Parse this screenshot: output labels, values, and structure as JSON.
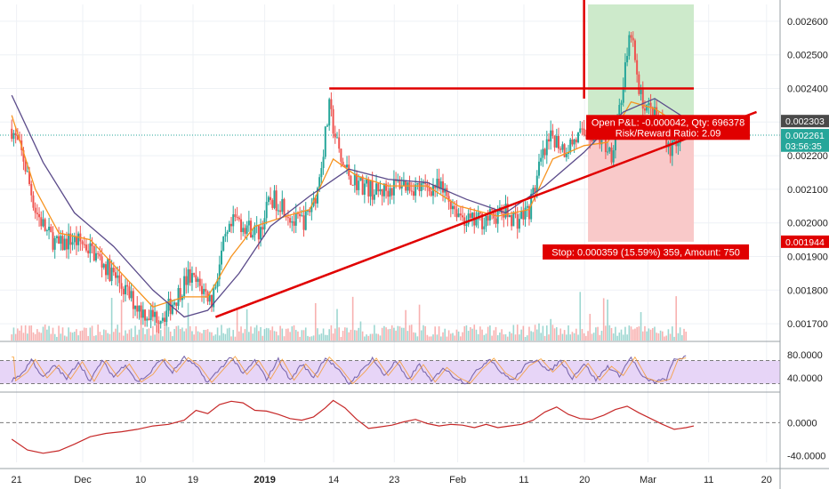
{
  "chart_data": {
    "type": "candlestick",
    "x_ticks": [
      "21",
      "Dec",
      "10",
      "19",
      "2019",
      "14",
      "23",
      "Feb",
      "11",
      "20",
      "Mar",
      "11",
      "20"
    ],
    "bold_x_ticks": [
      "2019"
    ],
    "price_axis": {
      "ticks": [
        "0.001700",
        "0.001800",
        "0.001900",
        "0.002000",
        "0.002100",
        "0.002200",
        "0.002300",
        "0.002400",
        "0.002500",
        "0.002600"
      ],
      "ylim": [
        0.00165,
        0.00265
      ]
    },
    "price_badges": [
      {
        "label": "0.002303",
        "value": 0.002303,
        "color": "#4a4a4a"
      },
      {
        "label": "0.002261",
        "value": 0.002261,
        "color": "#26a69a"
      },
      {
        "label": "03:56:35",
        "value": 0.00223,
        "color": "#26a69a"
      },
      {
        "label": "0.001944",
        "value": 0.001944,
        "color": "#e00000"
      }
    ],
    "price_series": [
      {
        "x": 0,
        "y": 0.00228
      },
      {
        "x": 3,
        "y": 0.00219
      },
      {
        "x": 6,
        "y": 0.00204
      },
      {
        "x": 9,
        "y": 0.00197
      },
      {
        "x": 12,
        "y": 0.00193
      },
      {
        "x": 15,
        "y": 0.00195
      },
      {
        "x": 18,
        "y": 0.00194
      },
      {
        "x": 21,
        "y": 0.00191
      },
      {
        "x": 24,
        "y": 0.00187
      },
      {
        "x": 27,
        "y": 0.00183
      },
      {
        "x": 30,
        "y": 0.00178
      },
      {
        "x": 33,
        "y": 0.00174
      },
      {
        "x": 36,
        "y": 0.00172
      },
      {
        "x": 39,
        "y": 0.00173
      },
      {
        "x": 42,
        "y": 0.00178
      },
      {
        "x": 45,
        "y": 0.00184
      },
      {
        "x": 48,
        "y": 0.00181
      },
      {
        "x": 51,
        "y": 0.00177
      },
      {
        "x": 54,
        "y": 0.00193
      },
      {
        "x": 57,
        "y": 0.00201
      },
      {
        "x": 60,
        "y": 0.00199
      },
      {
        "x": 63,
        "y": 0.00197
      },
      {
        "x": 66,
        "y": 0.00207
      },
      {
        "x": 69,
        "y": 0.00206
      },
      {
        "x": 72,
        "y": 0.002
      },
      {
        "x": 75,
        "y": 0.00201
      },
      {
        "x": 78,
        "y": 0.0021
      },
      {
        "x": 81,
        "y": 0.00234
      },
      {
        "x": 84,
        "y": 0.00218
      },
      {
        "x": 87,
        "y": 0.00213
      },
      {
        "x": 90,
        "y": 0.00211
      },
      {
        "x": 93,
        "y": 0.00209
      },
      {
        "x": 96,
        "y": 0.0021
      },
      {
        "x": 99,
        "y": 0.00212
      },
      {
        "x": 102,
        "y": 0.00211
      },
      {
        "x": 105,
        "y": 0.0021
      },
      {
        "x": 108,
        "y": 0.00211
      },
      {
        "x": 111,
        "y": 0.00208
      },
      {
        "x": 114,
        "y": 0.00203
      },
      {
        "x": 117,
        "y": 0.002
      },
      {
        "x": 120,
        "y": 0.00201
      },
      {
        "x": 123,
        "y": 0.00202
      },
      {
        "x": 126,
        "y": 0.00203
      },
      {
        "x": 129,
        "y": 0.00201
      },
      {
        "x": 132,
        "y": 0.00204
      },
      {
        "x": 135,
        "y": 0.00218
      },
      {
        "x": 138,
        "y": 0.00226
      },
      {
        "x": 141,
        "y": 0.00222
      },
      {
        "x": 144,
        "y": 0.00225
      },
      {
        "x": 147,
        "y": 0.00227
      },
      {
        "x": 150,
        "y": 0.00225
      },
      {
        "x": 153,
        "y": 0.00221
      },
      {
        "x": 156,
        "y": 0.00241
      },
      {
        "x": 158,
        "y": 0.00257
      },
      {
        "x": 160,
        "y": 0.00238
      },
      {
        "x": 163,
        "y": 0.00233
      },
      {
        "x": 166,
        "y": 0.00229
      },
      {
        "x": 168,
        "y": 0.00222
      },
      {
        "x": 170,
        "y": 0.00226
      },
      {
        "x": 172,
        "y": 0.00226
      }
    ],
    "moving_averages": [
      {
        "color": "#f7931e",
        "points": [
          {
            "x": 0,
            "y": 0.00232
          },
          {
            "x": 6,
            "y": 0.0021
          },
          {
            "x": 12,
            "y": 0.00197
          },
          {
            "x": 20,
            "y": 0.00195
          },
          {
            "x": 28,
            "y": 0.00185
          },
          {
            "x": 36,
            "y": 0.00175
          },
          {
            "x": 44,
            "y": 0.00178
          },
          {
            "x": 50,
            "y": 0.00178
          },
          {
            "x": 56,
            "y": 0.0019
          },
          {
            "x": 62,
            "y": 0.00199
          },
          {
            "x": 70,
            "y": 0.00202
          },
          {
            "x": 76,
            "y": 0.00204
          },
          {
            "x": 82,
            "y": 0.00219
          },
          {
            "x": 88,
            "y": 0.00214
          },
          {
            "x": 96,
            "y": 0.00211
          },
          {
            "x": 106,
            "y": 0.00211
          },
          {
            "x": 114,
            "y": 0.00205
          },
          {
            "x": 124,
            "y": 0.00202
          },
          {
            "x": 132,
            "y": 0.00204
          },
          {
            "x": 138,
            "y": 0.00219
          },
          {
            "x": 146,
            "y": 0.00223
          },
          {
            "x": 152,
            "y": 0.00224
          },
          {
            "x": 158,
            "y": 0.00236
          },
          {
            "x": 164,
            "y": 0.00234
          },
          {
            "x": 172,
            "y": 0.00228
          }
        ]
      },
      {
        "color": "#5b4b8a",
        "points": [
          {
            "x": 0,
            "y": 0.00238
          },
          {
            "x": 8,
            "y": 0.00218
          },
          {
            "x": 16,
            "y": 0.00203
          },
          {
            "x": 26,
            "y": 0.00193
          },
          {
            "x": 36,
            "y": 0.0018
          },
          {
            "x": 44,
            "y": 0.00172
          },
          {
            "x": 50,
            "y": 0.00174
          },
          {
            "x": 58,
            "y": 0.00185
          },
          {
            "x": 66,
            "y": 0.00199
          },
          {
            "x": 76,
            "y": 0.00208
          },
          {
            "x": 86,
            "y": 0.00216
          },
          {
            "x": 96,
            "y": 0.00213
          },
          {
            "x": 106,
            "y": 0.00212
          },
          {
            "x": 116,
            "y": 0.00207
          },
          {
            "x": 126,
            "y": 0.00203
          },
          {
            "x": 136,
            "y": 0.00211
          },
          {
            "x": 146,
            "y": 0.00221
          },
          {
            "x": 156,
            "y": 0.00233
          },
          {
            "x": 164,
            "y": 0.00237
          },
          {
            "x": 172,
            "y": 0.00231
          }
        ]
      }
    ],
    "drawings": {
      "resistance_y": 0.0024,
      "resistance_from_x": 81,
      "resistance_to_x": 174,
      "trendline": {
        "from": {
          "x": 52,
          "y": 0.00172
        },
        "to": {
          "x": 190,
          "y": 0.00233
        }
      },
      "marker": {
        "x": 146,
        "from_y": 0.00237,
        "to_y": 0.0027
      }
    },
    "position": {
      "start_x": 147,
      "end_x": 174,
      "entry": 0.0023,
      "target": 0.00265,
      "stop": 0.001944,
      "open_text_1": "Open P&L: -0.000042, Qty: 696378",
      "open_text_2": "Risk/Reward Ratio: 2.09",
      "stop_text": "Stop: 0.000359 (15.59%) 359, Amount: 750"
    },
    "rsi_panel": {
      "ticks": [
        "40.0000",
        "80.0000"
      ],
      "ylim": [
        17,
        100
      ],
      "band": [
        30,
        70
      ],
      "series": [
        {
          "x": 0,
          "y": 35
        },
        {
          "x": 3,
          "y": 50
        },
        {
          "x": 5,
          "y": 72
        },
        {
          "x": 8,
          "y": 40
        },
        {
          "x": 11,
          "y": 62
        },
        {
          "x": 14,
          "y": 38
        },
        {
          "x": 17,
          "y": 68
        },
        {
          "x": 20,
          "y": 34
        },
        {
          "x": 23,
          "y": 70
        },
        {
          "x": 26,
          "y": 42
        },
        {
          "x": 29,
          "y": 64
        },
        {
          "x": 32,
          "y": 33
        },
        {
          "x": 35,
          "y": 46
        },
        {
          "x": 38,
          "y": 73
        },
        {
          "x": 41,
          "y": 50
        },
        {
          "x": 44,
          "y": 75
        },
        {
          "x": 47,
          "y": 60
        },
        {
          "x": 50,
          "y": 32
        },
        {
          "x": 53,
          "y": 55
        },
        {
          "x": 56,
          "y": 77
        },
        {
          "x": 59,
          "y": 46
        },
        {
          "x": 62,
          "y": 70
        },
        {
          "x": 65,
          "y": 38
        },
        {
          "x": 68,
          "y": 72
        },
        {
          "x": 71,
          "y": 36
        },
        {
          "x": 74,
          "y": 64
        },
        {
          "x": 77,
          "y": 41
        },
        {
          "x": 80,
          "y": 76
        },
        {
          "x": 83,
          "y": 56
        },
        {
          "x": 86,
          "y": 30
        },
        {
          "x": 89,
          "y": 50
        },
        {
          "x": 92,
          "y": 74
        },
        {
          "x": 95,
          "y": 44
        },
        {
          "x": 98,
          "y": 69
        },
        {
          "x": 101,
          "y": 36
        },
        {
          "x": 104,
          "y": 63
        },
        {
          "x": 107,
          "y": 33
        },
        {
          "x": 110,
          "y": 58
        },
        {
          "x": 113,
          "y": 41
        },
        {
          "x": 116,
          "y": 31
        },
        {
          "x": 119,
          "y": 55
        },
        {
          "x": 122,
          "y": 74
        },
        {
          "x": 125,
          "y": 48
        },
        {
          "x": 128,
          "y": 36
        },
        {
          "x": 131,
          "y": 61
        },
        {
          "x": 134,
          "y": 73
        },
        {
          "x": 137,
          "y": 50
        },
        {
          "x": 140,
          "y": 70
        },
        {
          "x": 143,
          "y": 40
        },
        {
          "x": 146,
          "y": 65
        },
        {
          "x": 149,
          "y": 36
        },
        {
          "x": 152,
          "y": 60
        },
        {
          "x": 155,
          "y": 44
        },
        {
          "x": 158,
          "y": 76
        },
        {
          "x": 161,
          "y": 40
        },
        {
          "x": 164,
          "y": 33
        },
        {
          "x": 167,
          "y": 38
        },
        {
          "x": 169,
          "y": 72
        },
        {
          "x": 172,
          "y": 76
        }
      ]
    },
    "osc_panel": {
      "ticks": [
        "-40.0000",
        "0.0000"
      ],
      "ylim": [
        -48,
        36
      ],
      "zero_line": 0,
      "series": [
        {
          "x": 0,
          "y": -20
        },
        {
          "x": 4,
          "y": -33
        },
        {
          "x": 8,
          "y": -37
        },
        {
          "x": 12,
          "y": -34
        },
        {
          "x": 16,
          "y": -26
        },
        {
          "x": 20,
          "y": -17
        },
        {
          "x": 24,
          "y": -13
        },
        {
          "x": 28,
          "y": -11
        },
        {
          "x": 32,
          "y": -8
        },
        {
          "x": 36,
          "y": -4
        },
        {
          "x": 40,
          "y": -2
        },
        {
          "x": 44,
          "y": 3
        },
        {
          "x": 47,
          "y": 15
        },
        {
          "x": 50,
          "y": 11
        },
        {
          "x": 53,
          "y": 22
        },
        {
          "x": 56,
          "y": 26
        },
        {
          "x": 59,
          "y": 24
        },
        {
          "x": 62,
          "y": 15
        },
        {
          "x": 65,
          "y": 14
        },
        {
          "x": 68,
          "y": 10
        },
        {
          "x": 71,
          "y": 5
        },
        {
          "x": 74,
          "y": 3
        },
        {
          "x": 77,
          "y": 7
        },
        {
          "x": 80,
          "y": 18
        },
        {
          "x": 82,
          "y": 27
        },
        {
          "x": 85,
          "y": 18
        },
        {
          "x": 88,
          "y": 4
        },
        {
          "x": 91,
          "y": -7
        },
        {
          "x": 94,
          "y": -5
        },
        {
          "x": 97,
          "y": -3
        },
        {
          "x": 100,
          "y": 1
        },
        {
          "x": 103,
          "y": 4
        },
        {
          "x": 106,
          "y": -1
        },
        {
          "x": 109,
          "y": -4
        },
        {
          "x": 112,
          "y": -2
        },
        {
          "x": 115,
          "y": -3
        },
        {
          "x": 118,
          "y": -6
        },
        {
          "x": 121,
          "y": -2
        },
        {
          "x": 124,
          "y": -6
        },
        {
          "x": 127,
          "y": -4
        },
        {
          "x": 130,
          "y": -2
        },
        {
          "x": 133,
          "y": 3
        },
        {
          "x": 136,
          "y": 13
        },
        {
          "x": 139,
          "y": 19
        },
        {
          "x": 142,
          "y": 10
        },
        {
          "x": 145,
          "y": 5
        },
        {
          "x": 148,
          "y": 4
        },
        {
          "x": 151,
          "y": 9
        },
        {
          "x": 154,
          "y": 16
        },
        {
          "x": 157,
          "y": 20
        },
        {
          "x": 160,
          "y": 12
        },
        {
          "x": 163,
          "y": 5
        },
        {
          "x": 166,
          "y": -2
        },
        {
          "x": 169,
          "y": -8
        },
        {
          "x": 172,
          "y": -6
        },
        {
          "x": 174,
          "y": -4
        }
      ]
    },
    "colors": {
      "up": "#26a69a",
      "down": "#ef5350",
      "drawing": "#e00000",
      "rsi_line": "#7b68ae",
      "rsi_band": "#e7d5f7",
      "osc_line": "#c62828",
      "profit_zone": "#cdeacb",
      "loss_zone": "#f9c9c9",
      "grid": "#eef1f5"
    }
  }
}
